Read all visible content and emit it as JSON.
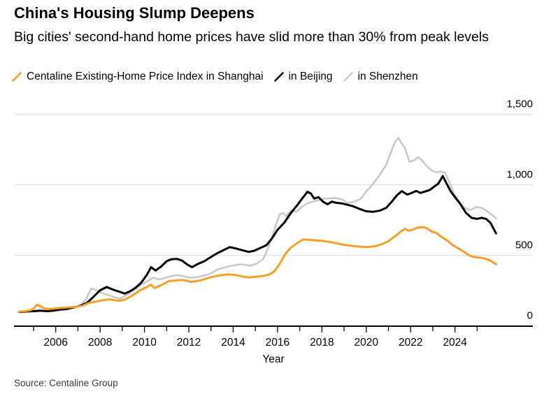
{
  "header": {
    "title": "China's Housing Slump Deepens",
    "subtitle": "Big cities' second-hand home prices have slid more than 30% from peak levels"
  },
  "legend": {
    "items": [
      {
        "label": "Centaline Existing-Home Price Index in Shanghai"
      },
      {
        "label": "in Beijing"
      },
      {
        "label": "in Shenzhen"
      }
    ]
  },
  "footer": {
    "source": "Source: Centaline Group"
  },
  "colors": {
    "shanghai": "#F79E28",
    "beijing": "#000000",
    "shenzhen": "#C8C8C8",
    "gridline": "#DEDEDE",
    "axis": "#000000"
  },
  "chart_data": {
    "type": "line",
    "title": "China's Housing Slump Deepens",
    "xlabel": "Year",
    "ylabel": "",
    "xlim": [
      2004,
      2026
    ],
    "ylim": [
      0,
      1500
    ],
    "grid": "horizontal",
    "legend_position": "top",
    "y_ticks": [
      {
        "value": 0,
        "label": "0"
      },
      {
        "value": 500,
        "label": "500"
      },
      {
        "value": 1000,
        "label": "1,000"
      },
      {
        "value": 1500,
        "label": "1,500"
      }
    ],
    "x_major_ticks": [
      {
        "year": 2006,
        "label": "2006"
      },
      {
        "year": 2008,
        "label": "2008"
      },
      {
        "year": 2010,
        "label": "2010"
      },
      {
        "year": 2012,
        "label": "2012"
      },
      {
        "year": 2014,
        "label": "2014"
      },
      {
        "year": 2016,
        "label": "2016"
      },
      {
        "year": 2018,
        "label": "2018"
      },
      {
        "year": 2020,
        "label": "2020"
      },
      {
        "year": 2022,
        "label": "2022"
      },
      {
        "year": 2024,
        "label": "2024"
      }
    ],
    "x_minor_tick_years": [
      2005,
      2007,
      2009,
      2011,
      2013,
      2015,
      2017,
      2019,
      2021,
      2023,
      2025
    ],
    "series": [
      {
        "name": "Centaline Existing-Home Price Index in Shenzhen",
        "color": "#C8C8C8",
        "line_width": 2.6,
        "points": [
          [
            2004.35,
            97
          ],
          [
            2004.7,
            100
          ],
          [
            2005.05,
            103
          ],
          [
            2005.4,
            105
          ],
          [
            2005.75,
            103
          ],
          [
            2006.1,
            108
          ],
          [
            2006.45,
            115
          ],
          [
            2006.8,
            126
          ],
          [
            2007.1,
            142
          ],
          [
            2007.35,
            185
          ],
          [
            2007.6,
            265
          ],
          [
            2007.85,
            252
          ],
          [
            2008.1,
            230
          ],
          [
            2008.4,
            216
          ],
          [
            2008.65,
            203
          ],
          [
            2008.9,
            193
          ],
          [
            2009.2,
            218
          ],
          [
            2009.5,
            250
          ],
          [
            2009.85,
            290
          ],
          [
            2010.15,
            318
          ],
          [
            2010.4,
            342
          ],
          [
            2010.65,
            328
          ],
          [
            2010.9,
            338
          ],
          [
            2011.15,
            350
          ],
          [
            2011.45,
            360
          ],
          [
            2011.75,
            353
          ],
          [
            2012.05,
            340
          ],
          [
            2012.35,
            345
          ],
          [
            2012.65,
            356
          ],
          [
            2012.95,
            368
          ],
          [
            2013.3,
            400
          ],
          [
            2013.7,
            418
          ],
          [
            2014.0,
            428
          ],
          [
            2014.35,
            436
          ],
          [
            2014.75,
            426
          ],
          [
            2015.05,
            440
          ],
          [
            2015.35,
            472
          ],
          [
            2015.6,
            560
          ],
          [
            2015.85,
            680
          ],
          [
            2016.1,
            790
          ],
          [
            2016.25,
            800
          ],
          [
            2016.4,
            775
          ],
          [
            2016.6,
            818
          ],
          [
            2016.85,
            808
          ],
          [
            2017.1,
            845
          ],
          [
            2017.4,
            872
          ],
          [
            2017.7,
            884
          ],
          [
            2018.0,
            898
          ],
          [
            2018.3,
            904
          ],
          [
            2018.6,
            906
          ],
          [
            2018.9,
            896
          ],
          [
            2019.15,
            872
          ],
          [
            2019.45,
            878
          ],
          [
            2019.75,
            900
          ],
          [
            2020.0,
            952
          ],
          [
            2020.3,
            1005
          ],
          [
            2020.6,
            1068
          ],
          [
            2020.9,
            1140
          ],
          [
            2021.1,
            1225
          ],
          [
            2021.3,
            1305
          ],
          [
            2021.45,
            1330
          ],
          [
            2021.6,
            1292
          ],
          [
            2021.75,
            1258
          ],
          [
            2021.95,
            1162
          ],
          [
            2022.15,
            1172
          ],
          [
            2022.35,
            1196
          ],
          [
            2022.55,
            1166
          ],
          [
            2022.75,
            1128
          ],
          [
            2022.95,
            1102
          ],
          [
            2023.15,
            1088
          ],
          [
            2023.35,
            1094
          ],
          [
            2023.55,
            1086
          ],
          [
            2023.75,
            1015
          ],
          [
            2023.95,
            938
          ],
          [
            2024.15,
            888
          ],
          [
            2024.45,
            832
          ],
          [
            2024.7,
            820
          ],
          [
            2024.95,
            842
          ],
          [
            2025.2,
            836
          ],
          [
            2025.45,
            812
          ],
          [
            2025.65,
            788
          ],
          [
            2025.85,
            762
          ]
        ]
      },
      {
        "name": "Centaline Existing-Home Price Index in Beijing",
        "color": "#000000",
        "line_width": 3,
        "points": [
          [
            2004.35,
            98
          ],
          [
            2004.7,
            102
          ],
          [
            2005.0,
            104
          ],
          [
            2005.3,
            108
          ],
          [
            2005.6,
            104
          ],
          [
            2005.9,
            108
          ],
          [
            2006.2,
            116
          ],
          [
            2006.5,
            120
          ],
          [
            2006.8,
            130
          ],
          [
            2007.1,
            142
          ],
          [
            2007.4,
            162
          ],
          [
            2007.7,
            205
          ],
          [
            2008.0,
            252
          ],
          [
            2008.3,
            275
          ],
          [
            2008.5,
            262
          ],
          [
            2008.7,
            250
          ],
          [
            2008.95,
            238
          ],
          [
            2009.1,
            228
          ],
          [
            2009.35,
            245
          ],
          [
            2009.6,
            270
          ],
          [
            2009.85,
            305
          ],
          [
            2010.1,
            360
          ],
          [
            2010.3,
            416
          ],
          [
            2010.5,
            392
          ],
          [
            2010.75,
            420
          ],
          [
            2011.0,
            458
          ],
          [
            2011.2,
            472
          ],
          [
            2011.45,
            475
          ],
          [
            2011.7,
            462
          ],
          [
            2011.95,
            432
          ],
          [
            2012.15,
            416
          ],
          [
            2012.4,
            438
          ],
          [
            2012.7,
            458
          ],
          [
            2013.0,
            488
          ],
          [
            2013.25,
            512
          ],
          [
            2013.55,
            535
          ],
          [
            2013.85,
            558
          ],
          [
            2014.1,
            549
          ],
          [
            2014.4,
            536
          ],
          [
            2014.7,
            524
          ],
          [
            2014.95,
            532
          ],
          [
            2015.2,
            550
          ],
          [
            2015.5,
            572
          ],
          [
            2015.75,
            620
          ],
          [
            2016.0,
            680
          ],
          [
            2016.3,
            730
          ],
          [
            2016.6,
            800
          ],
          [
            2016.9,
            858
          ],
          [
            2017.1,
            900
          ],
          [
            2017.35,
            950
          ],
          [
            2017.5,
            938
          ],
          [
            2017.65,
            902
          ],
          [
            2017.85,
            912
          ],
          [
            2018.05,
            880
          ],
          [
            2018.25,
            862
          ],
          [
            2018.45,
            880
          ],
          [
            2018.65,
            872
          ],
          [
            2018.9,
            868
          ],
          [
            2019.15,
            858
          ],
          [
            2019.4,
            848
          ],
          [
            2019.7,
            828
          ],
          [
            2020.0,
            812
          ],
          [
            2020.3,
            808
          ],
          [
            2020.6,
            816
          ],
          [
            2020.9,
            836
          ],
          [
            2021.15,
            880
          ],
          [
            2021.4,
            928
          ],
          [
            2021.6,
            955
          ],
          [
            2021.85,
            930
          ],
          [
            2022.05,
            942
          ],
          [
            2022.25,
            956
          ],
          [
            2022.45,
            942
          ],
          [
            2022.65,
            952
          ],
          [
            2022.85,
            962
          ],
          [
            2023.05,
            985
          ],
          [
            2023.25,
            1008
          ],
          [
            2023.45,
            1062
          ],
          [
            2023.6,
            1015
          ],
          [
            2023.8,
            955
          ],
          [
            2024.0,
            912
          ],
          [
            2024.25,
            862
          ],
          [
            2024.5,
            800
          ],
          [
            2024.75,
            765
          ],
          [
            2025.0,
            758
          ],
          [
            2025.2,
            766
          ],
          [
            2025.4,
            758
          ],
          [
            2025.6,
            730
          ],
          [
            2025.85,
            655
          ]
        ]
      },
      {
        "name": "Centaline Existing-Home Price Index in Shanghai",
        "color": "#F79E28",
        "line_width": 3,
        "points": [
          [
            2004.35,
            100
          ],
          [
            2004.6,
            104
          ],
          [
            2004.85,
            110
          ],
          [
            2005.0,
            122
          ],
          [
            2005.15,
            150
          ],
          [
            2005.3,
            138
          ],
          [
            2005.5,
            123
          ],
          [
            2005.75,
            120
          ],
          [
            2006.0,
            124
          ],
          [
            2006.3,
            127
          ],
          [
            2006.6,
            131
          ],
          [
            2006.9,
            134
          ],
          [
            2007.2,
            142
          ],
          [
            2007.5,
            163
          ],
          [
            2007.8,
            172
          ],
          [
            2008.0,
            178
          ],
          [
            2008.4,
            188
          ],
          [
            2008.6,
            183
          ],
          [
            2008.85,
            177
          ],
          [
            2009.1,
            185
          ],
          [
            2009.4,
            210
          ],
          [
            2009.8,
            252
          ],
          [
            2010.1,
            275
          ],
          [
            2010.3,
            292
          ],
          [
            2010.45,
            268
          ],
          [
            2010.7,
            285
          ],
          [
            2010.9,
            300
          ],
          [
            2011.1,
            317
          ],
          [
            2011.4,
            322
          ],
          [
            2011.7,
            325
          ],
          [
            2011.9,
            320
          ],
          [
            2012.1,
            312
          ],
          [
            2012.4,
            318
          ],
          [
            2012.7,
            330
          ],
          [
            2013.0,
            345
          ],
          [
            2013.4,
            358
          ],
          [
            2013.8,
            365
          ],
          [
            2014.1,
            360
          ],
          [
            2014.4,
            350
          ],
          [
            2014.7,
            342
          ],
          [
            2015.0,
            348
          ],
          [
            2015.3,
            352
          ],
          [
            2015.6,
            362
          ],
          [
            2015.85,
            385
          ],
          [
            2016.1,
            440
          ],
          [
            2016.35,
            510
          ],
          [
            2016.6,
            555
          ],
          [
            2016.9,
            588
          ],
          [
            2017.15,
            612
          ],
          [
            2017.4,
            610
          ],
          [
            2017.7,
            606
          ],
          [
            2018.0,
            602
          ],
          [
            2018.4,
            593
          ],
          [
            2018.7,
            583
          ],
          [
            2019.0,
            574
          ],
          [
            2019.4,
            566
          ],
          [
            2019.8,
            560
          ],
          [
            2020.1,
            558
          ],
          [
            2020.4,
            565
          ],
          [
            2020.7,
            578
          ],
          [
            2021.0,
            600
          ],
          [
            2021.3,
            635
          ],
          [
            2021.55,
            668
          ],
          [
            2021.75,
            688
          ],
          [
            2021.9,
            674
          ],
          [
            2022.1,
            682
          ],
          [
            2022.35,
            697
          ],
          [
            2022.55,
            699
          ],
          [
            2022.75,
            690
          ],
          [
            2022.95,
            668
          ],
          [
            2023.15,
            660
          ],
          [
            2023.4,
            628
          ],
          [
            2023.65,
            605
          ],
          [
            2023.9,
            572
          ],
          [
            2024.15,
            548
          ],
          [
            2024.4,
            525
          ],
          [
            2024.65,
            498
          ],
          [
            2024.9,
            486
          ],
          [
            2025.15,
            483
          ],
          [
            2025.4,
            474
          ],
          [
            2025.6,
            462
          ],
          [
            2025.85,
            436
          ]
        ]
      }
    ]
  }
}
